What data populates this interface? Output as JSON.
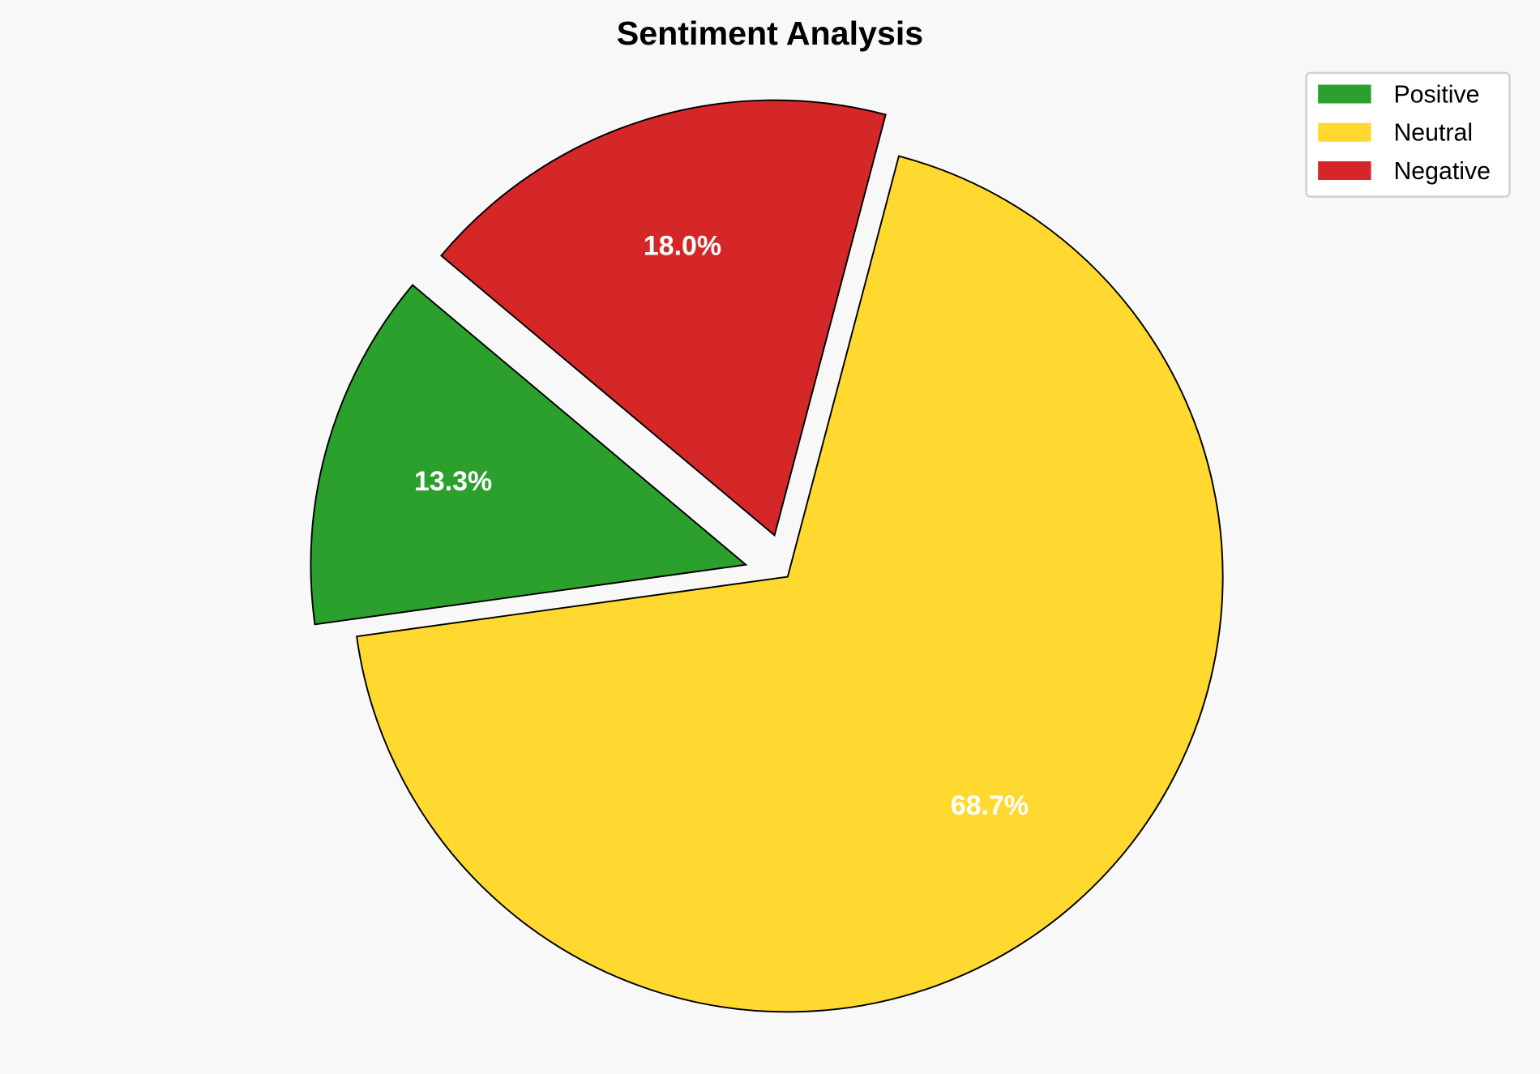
{
  "chart_data": {
    "type": "pie",
    "title": "Sentiment Analysis",
    "categories": [
      "Positive",
      "Neutral",
      "Negative"
    ],
    "values": [
      13.3,
      68.7,
      18.0
    ],
    "labels": [
      "13.3%",
      "68.7%",
      "18.0%"
    ],
    "colors": [
      "#2ca02c",
      "#ffd92f",
      "#d62728"
    ],
    "explode": [
      0.1,
      0,
      0.1
    ],
    "start_angle": 140,
    "counterclockwise": true,
    "legend": {
      "position": "top-right",
      "entries": [
        "Positive",
        "Neutral",
        "Negative"
      ]
    },
    "background": "#f8f8f8",
    "edge_color": "#000000",
    "label_color": "#ffffff"
  }
}
